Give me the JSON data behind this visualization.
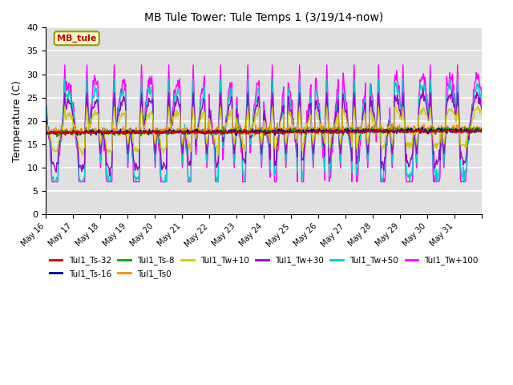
{
  "title": "MB Tule Tower: Tule Temps 1 (3/19/14-now)",
  "ylabel": "Temperature (C)",
  "ylim": [
    0,
    40
  ],
  "yticks": [
    0,
    5,
    10,
    15,
    20,
    25,
    30,
    35,
    40
  ],
  "bg_box_label": "MB_tule",
  "bg_color": "#e0e0e0",
  "legend_entries": [
    {
      "label": "Tul1_Ts-32",
      "color": "#cc0000"
    },
    {
      "label": "Tul1_Ts-16",
      "color": "#000099"
    },
    {
      "label": "Tul1_Ts-8",
      "color": "#00aa00"
    },
    {
      "label": "Tul1_Ts0",
      "color": "#ff8800"
    },
    {
      "label": "Tul1_Tw+10",
      "color": "#cccc00"
    },
    {
      "label": "Tul1_Tw+30",
      "color": "#9900cc"
    },
    {
      "label": "Tul1_Tw+50",
      "color": "#00cccc"
    },
    {
      "label": "Tul1_Tw+100",
      "color": "#ff00ff"
    }
  ],
  "xtick_labels": [
    "May 16",
    "May 17",
    "May 18",
    "May 19",
    "May 20",
    "May 21",
    "May 22",
    "May 23",
    "May 24",
    "May 25",
    "May 26",
    "May 27",
    "May 28",
    "May 29",
    "May 30",
    "May 31"
  ]
}
